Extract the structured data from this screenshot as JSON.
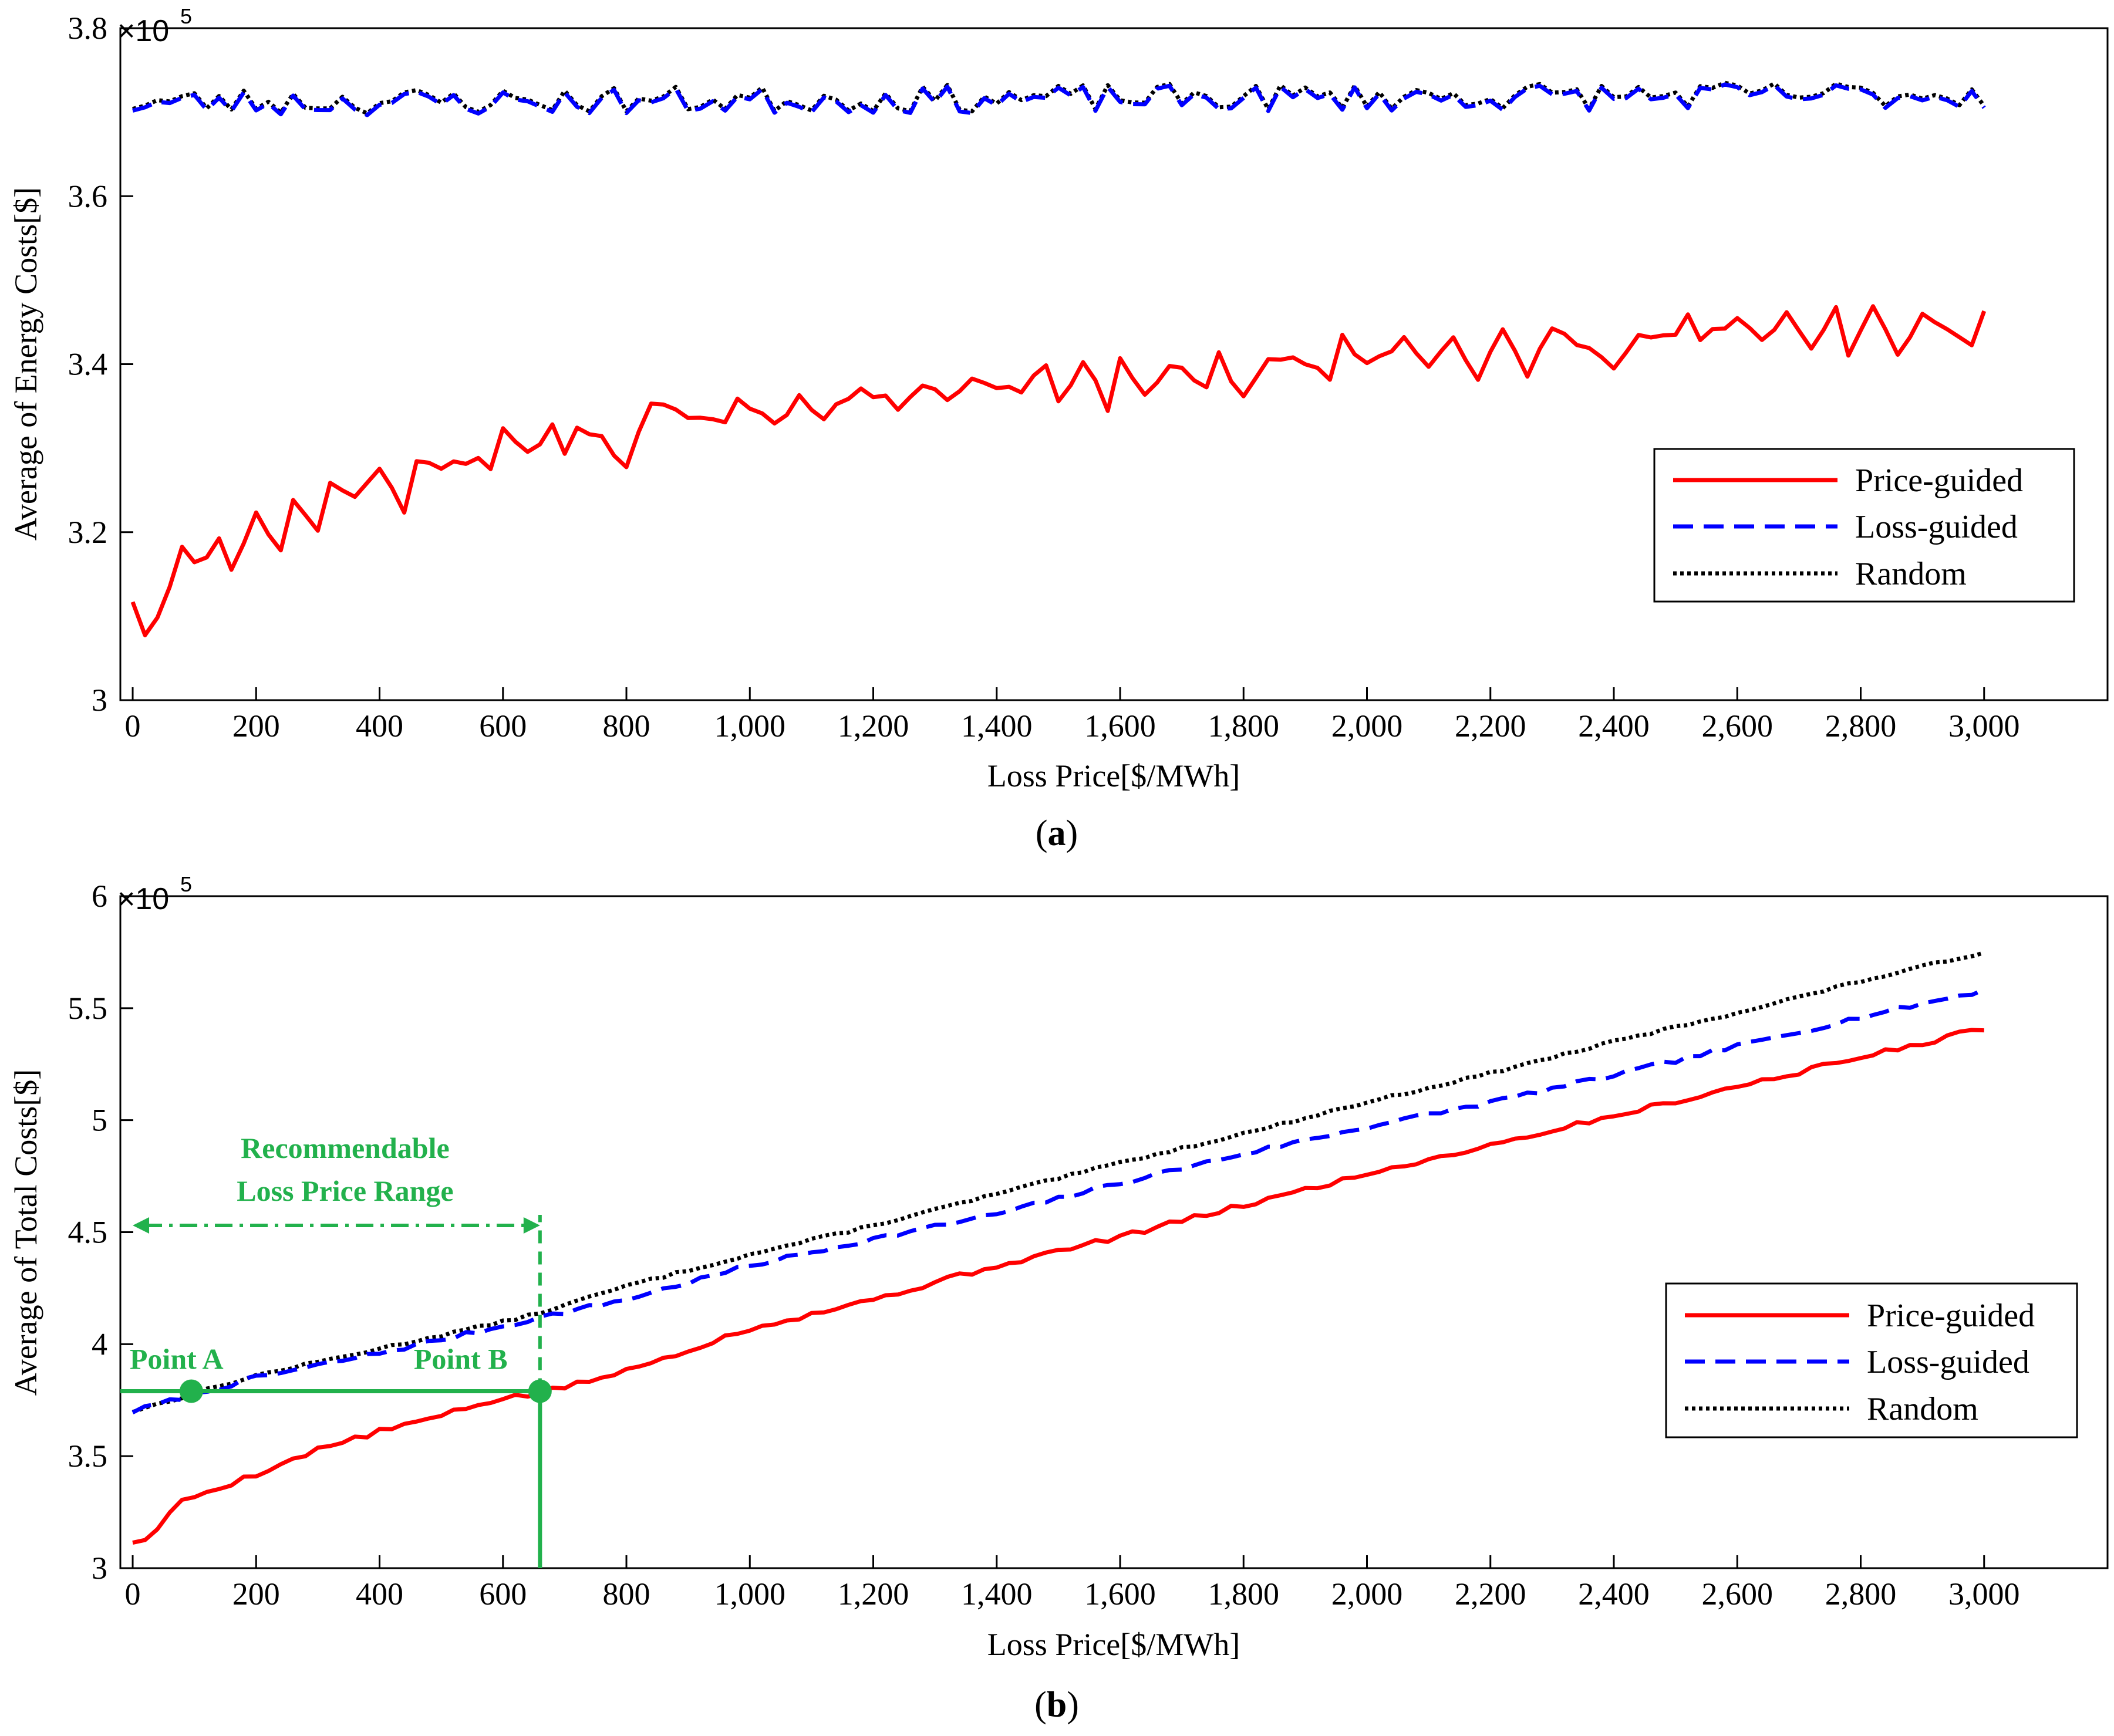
{
  "colors": {
    "price_guided": "#ff0000",
    "loss_guided": "#0000ff",
    "random": "#000000",
    "annotation": "#22b14c"
  },
  "chart_data": [
    {
      "id": "a",
      "type": "line",
      "caption_letter": "a",
      "multiplier_base": "×10",
      "multiplier_exp": "5",
      "xlabel": "Loss Price[$/MWh]",
      "ylabel": "Average of Energy Costs[$]",
      "xlim": [
        -20,
        3200
      ],
      "ylim": [
        3.0,
        3.8
      ],
      "x_ticks": [
        0,
        200,
        400,
        600,
        800,
        1000,
        1200,
        1400,
        1600,
        1800,
        2000,
        2200,
        2400,
        2600,
        2800,
        3000
      ],
      "x_tick_labels": [
        "0",
        "200",
        "400",
        "600",
        "800",
        "1,000",
        "1,200",
        "1,400",
        "1,600",
        "1,800",
        "2,000",
        "2,200",
        "2,400",
        "2,600",
        "2,800",
        "3,000"
      ],
      "y_ticks": [
        3.0,
        3.2,
        3.4,
        3.6,
        3.8
      ],
      "y_tick_labels": [
        "3",
        "3.2",
        "3.4",
        "3.6",
        "3.8"
      ],
      "x_start": 0,
      "x_step": 20,
      "n_points": 151,
      "legend": [
        "Price-guided",
        "Loss-guided",
        "Random"
      ],
      "legend_position": "right",
      "series": [
        {
          "name": "Price-guided",
          "style": "solid",
          "color": "#ff0000",
          "anchors": [
            [
              0,
              3.12
            ],
            [
              20,
              3.08
            ],
            [
              40,
              3.1
            ],
            [
              60,
              3.14
            ],
            [
              80,
              3.18
            ],
            [
              100,
              3.16
            ],
            [
              140,
              3.19
            ],
            [
              160,
              3.16
            ],
            [
              200,
              3.22
            ],
            [
              240,
              3.18
            ],
            [
              260,
              3.24
            ],
            [
              300,
              3.2
            ],
            [
              320,
              3.26
            ],
            [
              360,
              3.24
            ],
            [
              400,
              3.28
            ],
            [
              440,
              3.22
            ],
            [
              460,
              3.29
            ],
            [
              500,
              3.28
            ],
            [
              560,
              3.29
            ],
            [
              580,
              3.27
            ],
            [
              600,
              3.32
            ],
            [
              640,
              3.29
            ],
            [
              680,
              3.33
            ],
            [
              700,
              3.29
            ],
            [
              720,
              3.33
            ],
            [
              760,
              3.31
            ],
            [
              800,
              3.28
            ],
            [
              840,
              3.35
            ],
            [
              900,
              3.34
            ],
            [
              960,
              3.33
            ],
            [
              980,
              3.36
            ],
            [
              1040,
              3.33
            ],
            [
              1080,
              3.36
            ],
            [
              1120,
              3.34
            ],
            [
              1180,
              3.37
            ],
            [
              1240,
              3.35
            ],
            [
              1280,
              3.38
            ],
            [
              1320,
              3.36
            ],
            [
              1360,
              3.38
            ],
            [
              1440,
              3.37
            ],
            [
              1480,
              3.4
            ],
            [
              1500,
              3.36
            ],
            [
              1540,
              3.4
            ],
            [
              1580,
              3.35
            ],
            [
              1600,
              3.41
            ],
            [
              1640,
              3.36
            ],
            [
              1680,
              3.4
            ],
            [
              1740,
              3.37
            ],
            [
              1760,
              3.41
            ],
            [
              1800,
              3.36
            ],
            [
              1840,
              3.41
            ],
            [
              1900,
              3.4
            ],
            [
              1940,
              3.38
            ],
            [
              1960,
              3.43
            ],
            [
              2000,
              3.4
            ],
            [
              2060,
              3.43
            ],
            [
              2100,
              3.4
            ],
            [
              2140,
              3.43
            ],
            [
              2180,
              3.38
            ],
            [
              2220,
              3.44
            ],
            [
              2260,
              3.39
            ],
            [
              2300,
              3.44
            ],
            [
              2360,
              3.42
            ],
            [
              2400,
              3.4
            ],
            [
              2440,
              3.44
            ],
            [
              2500,
              3.43
            ],
            [
              2520,
              3.46
            ],
            [
              2540,
              3.43
            ],
            [
              2600,
              3.45
            ],
            [
              2640,
              3.43
            ],
            [
              2680,
              3.46
            ],
            [
              2720,
              3.42
            ],
            [
              2760,
              3.47
            ],
            [
              2780,
              3.41
            ],
            [
              2820,
              3.47
            ],
            [
              2860,
              3.41
            ],
            [
              2900,
              3.46
            ],
            [
              2940,
              3.44
            ],
            [
              2980,
              3.42
            ],
            [
              3000,
              3.46
            ]
          ],
          "jitter_amp": 0.006,
          "jitter_seed": 11
        },
        {
          "name": "Loss-guided",
          "style": "dashed",
          "color": "#0000ff",
          "anchors": [
            [
              0,
              3.71
            ],
            [
              3000,
              3.72
            ]
          ],
          "jitter_amp": 0.016,
          "jitter_seed": 23
        },
        {
          "name": "Random",
          "style": "dotted",
          "color": "#000000",
          "anchors": [
            [
              0,
              3.71
            ],
            [
              3000,
              3.72
            ]
          ],
          "jitter_amp": 0.016,
          "jitter_seed": 23,
          "offset": 0.002
        }
      ]
    },
    {
      "id": "b",
      "type": "line",
      "caption_letter": "b",
      "multiplier_base": "×10",
      "multiplier_exp": "5",
      "xlabel": "Loss Price[$/MWh]",
      "ylabel": "Average of Total Costs[$]",
      "xlim": [
        -20,
        3200
      ],
      "ylim": [
        3.0,
        6.0
      ],
      "x_ticks": [
        0,
        200,
        400,
        600,
        800,
        1000,
        1200,
        1400,
        1600,
        1800,
        2000,
        2200,
        2400,
        2600,
        2800,
        3000
      ],
      "x_tick_labels": [
        "0",
        "200",
        "400",
        "600",
        "800",
        "1,000",
        "1,200",
        "1,400",
        "1,600",
        "1,800",
        "2,000",
        "2,200",
        "2,400",
        "2,600",
        "2,800",
        "3,000"
      ],
      "y_ticks": [
        3.0,
        3.5,
        4.0,
        4.5,
        5.0,
        5.5,
        6.0
      ],
      "y_tick_labels": [
        "3",
        "3.5",
        "4",
        "4.5",
        "5",
        "5.5",
        "6"
      ],
      "x_start": 0,
      "x_step": 20,
      "n_points": 151,
      "legend": [
        "Price-guided",
        "Loss-guided",
        "Random"
      ],
      "legend_position": "right",
      "series": [
        {
          "name": "Price-guided",
          "style": "solid",
          "color": "#ff0000",
          "anchors": [
            [
              0,
              3.12
            ],
            [
              20,
              3.12
            ],
            [
              80,
              3.3
            ],
            [
              200,
              3.42
            ],
            [
              300,
              3.53
            ],
            [
              400,
              3.61
            ],
            [
              500,
              3.68
            ],
            [
              600,
              3.76
            ],
            [
              660,
              3.78
            ],
            [
              800,
              3.88
            ],
            [
              1000,
              4.07
            ],
            [
              1200,
              4.2
            ],
            [
              1400,
              4.35
            ],
            [
              1600,
              4.48
            ],
            [
              1800,
              4.62
            ],
            [
              2000,
              4.76
            ],
            [
              2200,
              4.89
            ],
            [
              2400,
              5.02
            ],
            [
              2600,
              5.15
            ],
            [
              2800,
              5.28
            ],
            [
              3000,
              5.41
            ]
          ],
          "jitter_amp": 0.012,
          "jitter_seed": 5
        },
        {
          "name": "Loss-guided",
          "style": "dashed",
          "color": "#0000ff",
          "anchors": [
            [
              0,
              3.7
            ],
            [
              200,
              3.85
            ],
            [
              400,
              3.96
            ],
            [
              600,
              4.08
            ],
            [
              660,
              4.12
            ],
            [
              800,
              4.2
            ],
            [
              1000,
              4.35
            ],
            [
              1200,
              4.47
            ],
            [
              1400,
              4.58
            ],
            [
              1600,
              4.72
            ],
            [
              1800,
              4.85
            ],
            [
              2000,
              4.97
            ],
            [
              2200,
              5.08
            ],
            [
              2400,
              5.2
            ],
            [
              2600,
              5.33
            ],
            [
              2800,
              5.46
            ],
            [
              3000,
              5.58
            ]
          ],
          "jitter_amp": 0.01,
          "jitter_seed": 7
        },
        {
          "name": "Random",
          "style": "dotted",
          "color": "#000000",
          "anchors": [
            [
              0,
              3.7
            ],
            [
              200,
              3.86
            ],
            [
              400,
              3.98
            ],
            [
              600,
              4.1
            ],
            [
              660,
              4.14
            ],
            [
              800,
              4.26
            ],
            [
              1000,
              4.4
            ],
            [
              1200,
              4.53
            ],
            [
              1400,
              4.67
            ],
            [
              1600,
              4.81
            ],
            [
              1800,
              4.94
            ],
            [
              2000,
              5.08
            ],
            [
              2200,
              5.21
            ],
            [
              2400,
              5.35
            ],
            [
              2600,
              5.48
            ],
            [
              2800,
              5.62
            ],
            [
              3000,
              5.75
            ]
          ],
          "jitter_amp": 0.006,
          "jitter_seed": 13
        }
      ],
      "annotations": {
        "range_title_line1": "Recommendable",
        "range_title_line2": "Loss Price Range",
        "range_x_start": 0,
        "range_x_end": 660,
        "range_y": 4.53,
        "point_a_label": "Point A",
        "point_a_x": 95,
        "point_b_label": "Point B",
        "point_b_x": 660,
        "points_y": 3.79
      }
    }
  ]
}
